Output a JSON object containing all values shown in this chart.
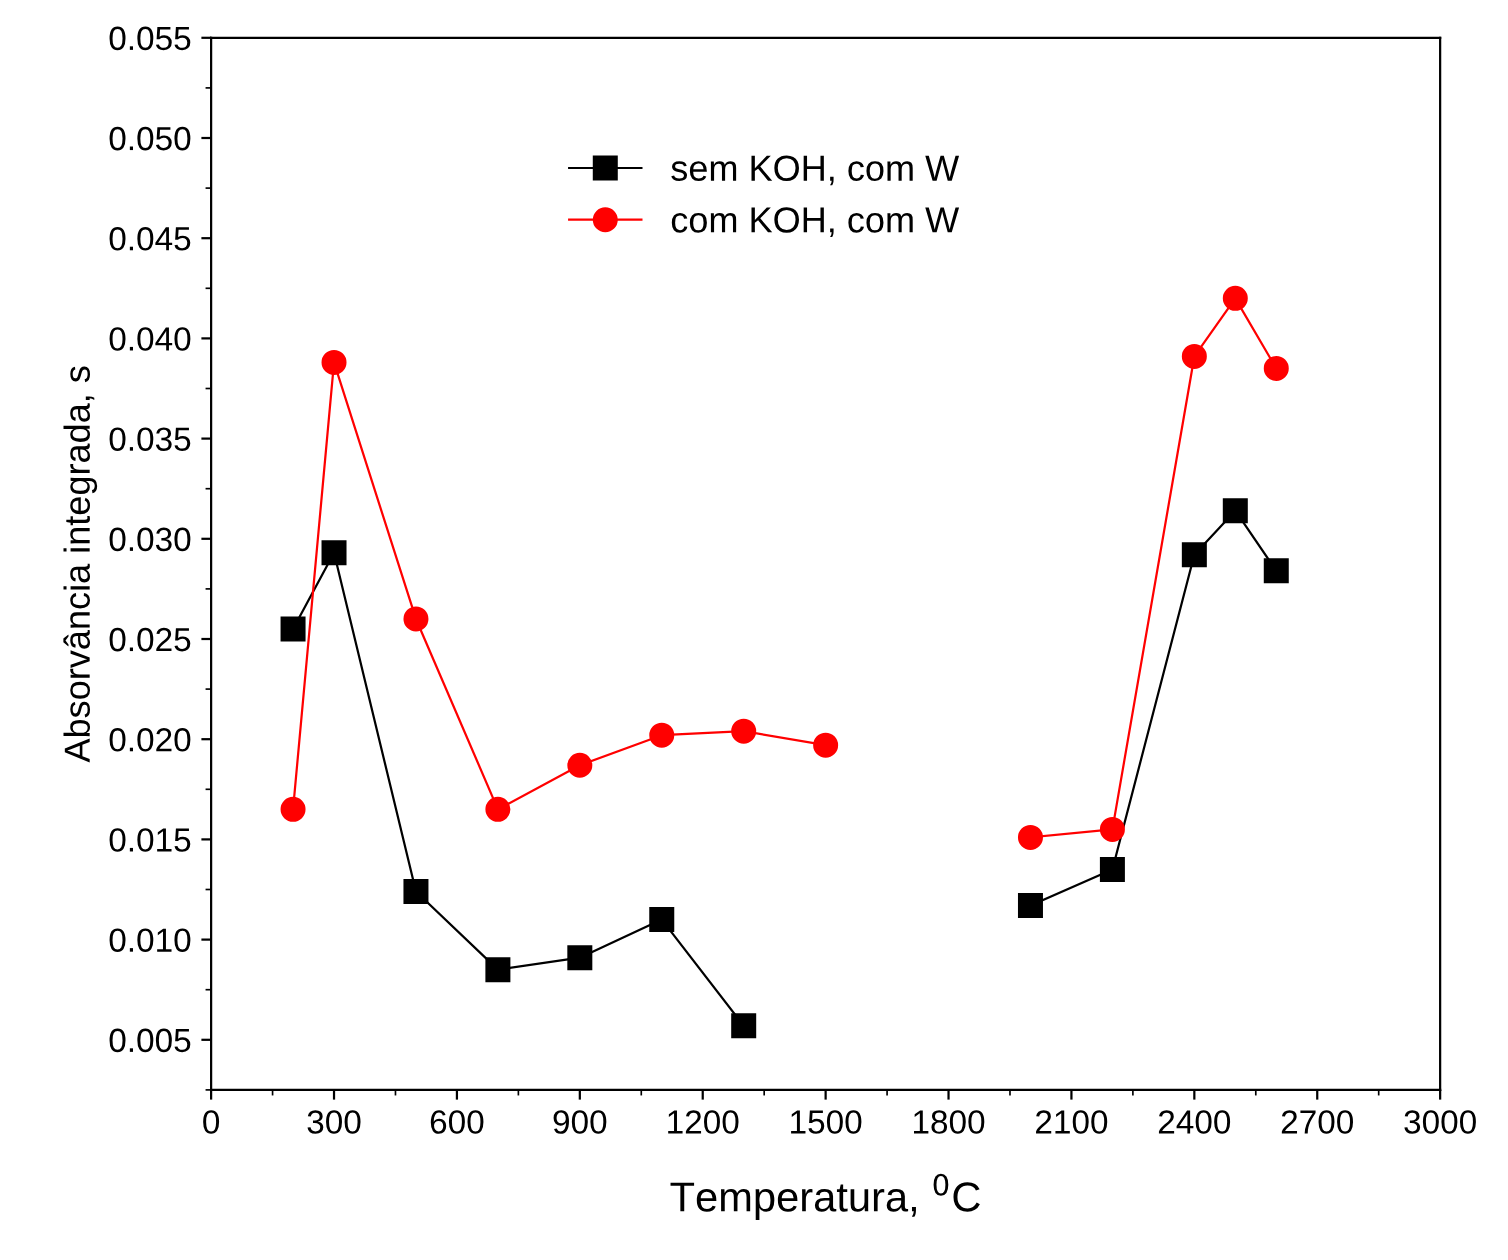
{
  "chart_data": {
    "type": "line",
    "xlabel": "Temperatura, $^{0}$C",
    "ylabel": "Absorvância integrada, s",
    "x": [
      200,
      300,
      500,
      700,
      900,
      1100,
      1300,
      1500,
      1800,
      2000,
      2200,
      2400,
      2500,
      2600
    ],
    "series": [
      {
        "name": "sem KOH, com W",
        "color": "#000000",
        "marker": "square",
        "values": [
          0.0255,
          0.0293,
          0.0124,
          0.0085,
          0.0091,
          0.011,
          0.0057,
          null,
          null,
          0.0117,
          0.0135,
          0.0292,
          0.0314,
          0.0284
        ]
      },
      {
        "name": "com KOH, com W",
        "color": "#ff0000",
        "marker": "circle",
        "values": [
          0.0165,
          0.0388,
          0.026,
          0.0165,
          0.0187,
          0.0202,
          0.0204,
          0.0197,
          null,
          0.0151,
          0.0155,
          0.0391,
          0.042,
          0.0385
        ]
      }
    ],
    "xlim": [
      0,
      3000
    ],
    "xticks": [
      0,
      300,
      600,
      900,
      1200,
      1500,
      1800,
      2100,
      2400,
      2700,
      3000
    ],
    "ylim": [
      0.0025,
      0.055
    ],
    "yticks": [
      0.005,
      {
        "value": 0.01,
        "label": "0.010"
      },
      0.015,
      {
        "value": 0.02,
        "label": "0.020"
      },
      0.025,
      {
        "value": 0.03,
        "label": "0.030"
      },
      0.035,
      {
        "value": 0.04,
        "label": "0.040"
      },
      0.045,
      {
        "value": 0.05,
        "label": "0.050"
      },
      0.055
    ],
    "grid": false,
    "legend": "top",
    "line_style": "solid"
  }
}
